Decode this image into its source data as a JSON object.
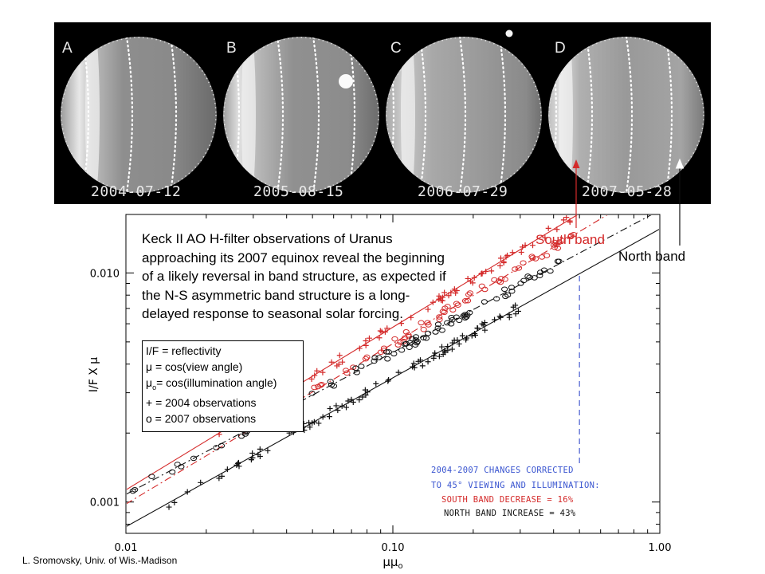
{
  "panels": [
    {
      "letter": "A",
      "date": "2004-07-12"
    },
    {
      "letter": "B",
      "date": "2005-08-15"
    },
    {
      "letter": "C",
      "date": "2006-07-29"
    },
    {
      "letter": "D",
      "date": "2007-05-28"
    }
  ],
  "callout": {
    "lines": [
      "Keck II AO H-filter observations of Uranus",
      "approaching its 2007 equinox reveal the beginning",
      "of a likely reversal in band structure, as expected if",
      "the N-S asymmetric band structure is a long-",
      "delayed response to seasonal solar forcing."
    ]
  },
  "definitions": {
    "line1": "I/F = reflectivity",
    "line2": "μ = cos(view angle)",
    "line3_prefix": "μ",
    "line3_sub": "o",
    "line3_suffix": "= cos(illumination angle)",
    "line4": "+ = 2004 observations",
    "line5": "o = 2007 observations"
  },
  "labels": {
    "south_band": "South band",
    "north_band": "North band",
    "credit": "L. Sromovsky, Univ. of Wis.-Madison"
  },
  "corrections": {
    "line1": "2004-2007 CHANGES CORRECTED",
    "line2": "TO 45° VIEWING AND ILLUMINATION:",
    "south": "SOUTH BAND DECREASE =  16%",
    "north": "NORTH BAND INCREASE =  43%"
  },
  "colors": {
    "south": "#d42a2a",
    "north": "#111111",
    "marker_line": "#4a5fd0",
    "correction_title": "#3a55d0"
  },
  "chart_data": {
    "type": "scatter",
    "xscale": "log",
    "yscale": "log",
    "xlim": [
      0.01,
      1.0
    ],
    "ylim": [
      0.00073,
      0.018
    ],
    "xticks": [
      0.01,
      0.1,
      1.0
    ],
    "xtick_labels": [
      "0.01",
      "0.10",
      "1.00"
    ],
    "yticks": [
      0.001,
      0.01
    ],
    "ytick_labels": [
      "0.001",
      "0.010"
    ],
    "xlabel_base": "μμ",
    "xlabel_sub": "o",
    "ylabel": "I/F X μ",
    "vertical_marker_x": 0.5,
    "series": [
      {
        "band": "south",
        "epoch": "2004",
        "marker": "+",
        "color": "#d42a2a",
        "fit": {
          "x0": 0.01,
          "y0": 0.00113,
          "slope": 0.71,
          "style": "solid"
        },
        "x_range": [
          0.018,
          0.5
        ],
        "n": 70
      },
      {
        "band": "south",
        "epoch": "2007",
        "marker": "o",
        "color": "#d42a2a",
        "fit": {
          "x0": 0.01,
          "y0": 0.00098,
          "slope": 0.7,
          "style": "dashdot"
        },
        "x_range": [
          0.018,
          0.5
        ],
        "n": 70
      },
      {
        "band": "north",
        "epoch": "2007",
        "marker": "o",
        "color": "#111111",
        "fit": {
          "x0": 0.01,
          "y0": 0.00108,
          "slope": 0.62,
          "style": "dashdot"
        },
        "x_range": [
          0.0105,
          0.45
        ],
        "n": 85
      },
      {
        "band": "north",
        "epoch": "2004",
        "marker": "+",
        "color": "#111111",
        "fit": {
          "x0": 0.01,
          "y0": 0.00078,
          "slope": 0.65,
          "style": "solid"
        },
        "x_range": [
          0.0105,
          0.3
        ],
        "n": 90
      }
    ]
  }
}
